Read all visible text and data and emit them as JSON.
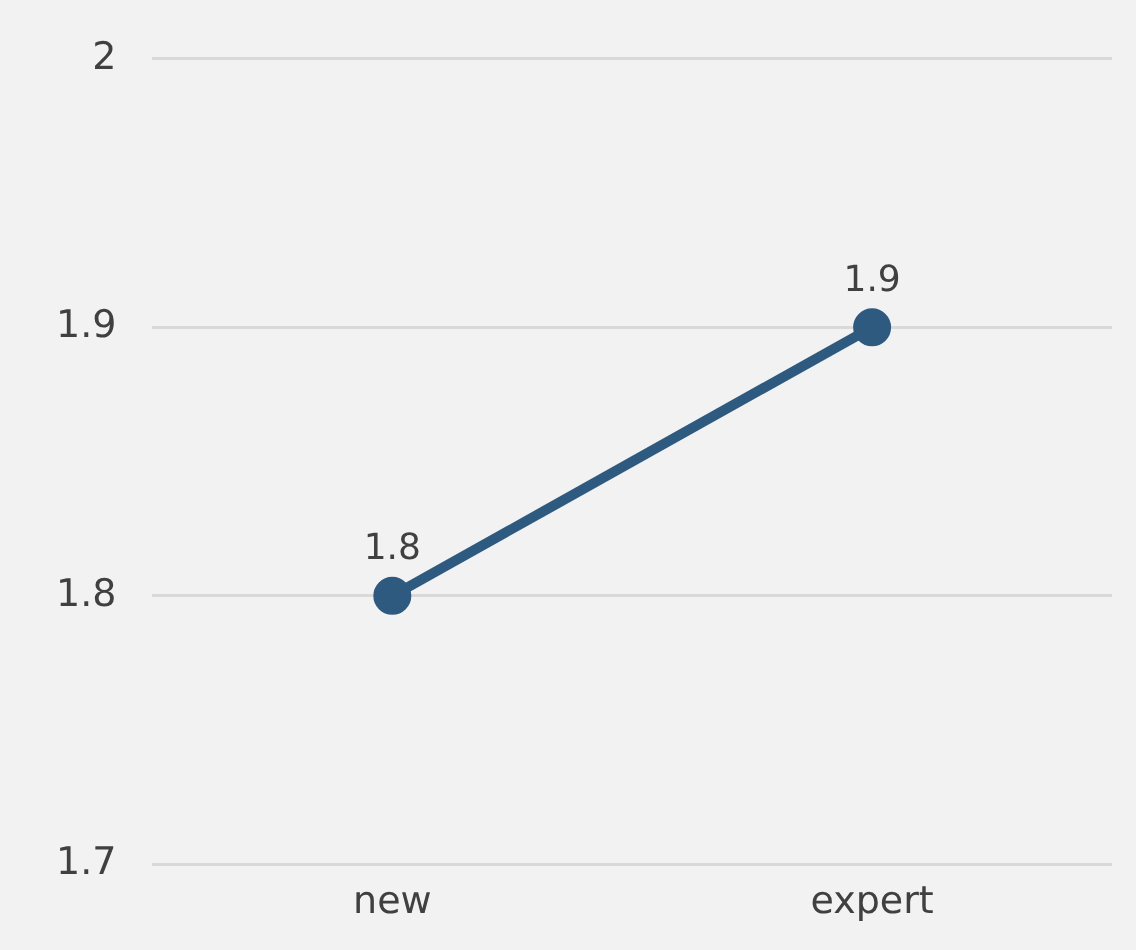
{
  "chart_data": {
    "type": "line",
    "categories": [
      "new",
      "expert"
    ],
    "series": [
      {
        "color": "#2e5a80",
        "values": [
          1.8,
          1.9
        ]
      }
    ],
    "ylim": [
      1.7,
      2
    ],
    "yticks": [
      1.7,
      1.8,
      1.9,
      2
    ],
    "grid": "y",
    "legend": false,
    "marker": "circle",
    "data_labels": true
  }
}
